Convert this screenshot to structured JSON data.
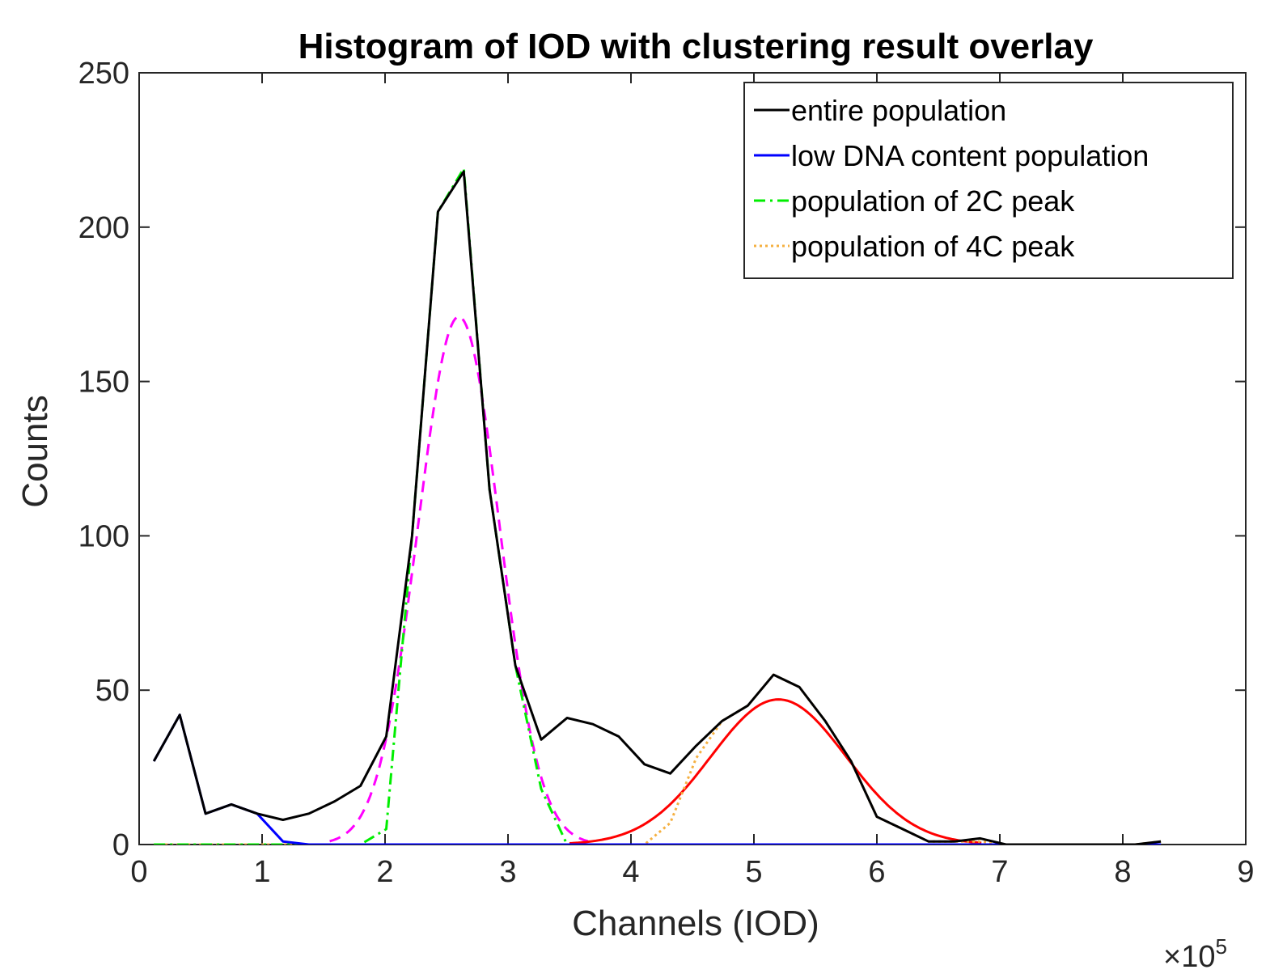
{
  "chart_data": {
    "type": "line",
    "title": "Histogram of IOD with clustering result overlay",
    "xlabel": "Channels (IOD)",
    "ylabel": "Counts",
    "x_exponent_prefix": "×10",
    "x_exponent_power": "5",
    "xlim": [
      0,
      9
    ],
    "ylim": [
      0,
      250
    ],
    "xticks": [
      0,
      1,
      2,
      3,
      4,
      5,
      6,
      7,
      8,
      9
    ],
    "yticks": [
      0,
      50,
      100,
      150,
      200,
      250
    ],
    "legend_position": "top-right",
    "series": [
      {
        "name": "entire population",
        "color": "#000000",
        "style": "solid",
        "x": [
          0.12,
          0.33,
          0.54,
          0.75,
          0.96,
          1.17,
          1.38,
          1.59,
          1.8,
          2.01,
          2.22,
          2.43,
          2.64,
          2.85,
          3.06,
          3.27,
          3.48,
          3.69,
          3.9,
          4.11,
          4.32,
          4.53,
          4.74,
          4.95,
          5.16,
          5.37,
          5.58,
          5.79,
          6.0,
          6.21,
          6.42,
          6.63,
          6.84,
          7.05,
          7.26,
          7.47,
          7.68,
          7.89,
          8.1,
          8.31
        ],
        "y": [
          27,
          42,
          10,
          13,
          10,
          8,
          10,
          14,
          19,
          35,
          100,
          205,
          218,
          115,
          58,
          34,
          41,
          39,
          35,
          26,
          23,
          32,
          40,
          45,
          55,
          51,
          40,
          27,
          9,
          5,
          1,
          1,
          2,
          0,
          0,
          0,
          0,
          0,
          0,
          1
        ]
      },
      {
        "name": "low DNA content population",
        "color": "#0000ff",
        "style": "solid",
        "x": [
          0.12,
          0.33,
          0.54,
          0.75,
          0.96,
          1.17,
          1.38,
          1.59,
          1.8,
          2.01,
          2.22,
          2.43,
          2.64,
          2.85,
          3.06,
          3.27,
          3.48,
          3.69,
          3.9,
          4.11,
          4.32,
          4.53,
          4.74,
          4.95,
          5.16,
          5.37,
          5.58,
          5.79,
          6.0,
          6.21,
          6.42,
          6.63,
          6.84,
          7.05,
          7.26,
          7.47,
          7.68,
          7.89,
          8.1,
          8.31
        ],
        "y": [
          27,
          42,
          10,
          13,
          10,
          1,
          0,
          0,
          0,
          0,
          0,
          0,
          0,
          0,
          0,
          0,
          0,
          0,
          0,
          0,
          0,
          0,
          0,
          0,
          0,
          0,
          0,
          0,
          0,
          0,
          0,
          0,
          0,
          0,
          0,
          0,
          0,
          0,
          0,
          0
        ]
      },
      {
        "name": "population of 2C peak",
        "color": "#00ee00",
        "style": "dashdot",
        "x": [
          0.12,
          0.33,
          0.54,
          0.75,
          0.96,
          1.17,
          1.38,
          1.59,
          1.8,
          2.01,
          2.22,
          2.43,
          2.64,
          2.85,
          3.06,
          3.27,
          3.48,
          3.69,
          3.9,
          4.11,
          4.32,
          4.53,
          4.74,
          4.95,
          5.16,
          5.37,
          5.58,
          5.79,
          6.0,
          6.21,
          6.42,
          6.63,
          6.84,
          7.05,
          7.26,
          7.47,
          7.68,
          7.89,
          8.1,
          8.31
        ],
        "y": [
          0,
          0,
          0,
          0,
          0,
          0,
          0,
          0,
          0,
          5,
          100,
          205,
          219,
          115,
          58,
          18,
          0,
          0,
          0,
          0,
          0,
          0,
          0,
          0,
          0,
          0,
          0,
          0,
          0,
          0,
          0,
          0,
          0,
          0,
          0,
          0,
          0,
          0,
          0,
          0
        ]
      },
      {
        "name": "population of 4C peak",
        "color": "#f5b041",
        "style": "dotted",
        "x": [
          0.12,
          0.33,
          0.54,
          0.75,
          0.96,
          1.17,
          1.38,
          1.59,
          1.8,
          2.01,
          2.22,
          2.43,
          2.64,
          2.85,
          3.06,
          3.27,
          3.48,
          3.69,
          3.9,
          4.11,
          4.32,
          4.53,
          4.74,
          4.95,
          5.16,
          5.37,
          5.58,
          5.79,
          6.0,
          6.21,
          6.42,
          6.63,
          6.84,
          7.05,
          7.26,
          7.47,
          7.68,
          7.89,
          8.1,
          8.31
        ],
        "y": [
          0,
          0,
          0,
          0,
          0,
          0,
          0,
          0,
          0,
          0,
          0,
          0,
          0,
          0,
          0,
          0,
          0,
          0,
          0,
          0,
          7,
          28,
          40,
          45,
          55,
          51,
          40,
          27,
          9,
          5,
          1,
          1,
          1,
          0,
          0,
          0,
          0,
          0,
          0,
          1
        ]
      },
      {
        "name": "Gaussian fit 2C peak",
        "color": "#ff00ff",
        "style": "dashed",
        "in_legend": false,
        "gaussian": {
          "amplitude": 171,
          "mean": 2.6,
          "sigma": 0.33,
          "xmin": 1.55,
          "xmax": 3.65
        }
      },
      {
        "name": "Gaussian fit 4C peak",
        "color": "#ff0000",
        "style": "solid",
        "in_legend": false,
        "gaussian": {
          "amplitude": 47,
          "mean": 5.2,
          "sigma": 0.55,
          "xmin": 3.5,
          "xmax": 6.85
        }
      }
    ]
  }
}
